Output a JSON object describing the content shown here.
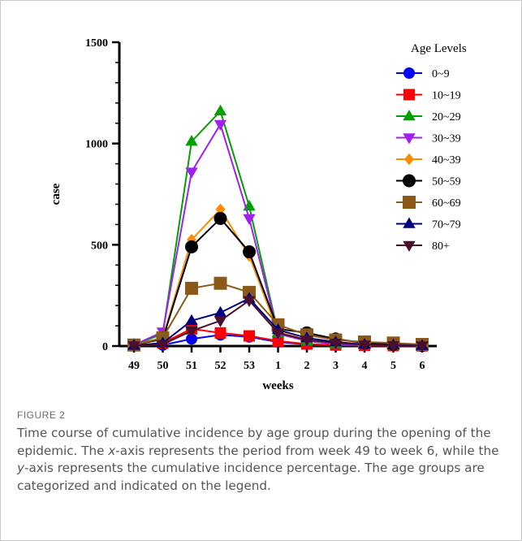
{
  "chart_data": {
    "type": "line",
    "title": "",
    "xlabel": "weeks",
    "ylabel": "case",
    "categories": [
      "49",
      "50",
      "51",
      "52",
      "53",
      "1",
      "2",
      "3",
      "4",
      "5",
      "6"
    ],
    "ylim": [
      0,
      1500
    ],
    "yticks": [
      "0",
      "500",
      "1000",
      "1500"
    ],
    "legend_title": "Age Levels",
    "legend_position": "top-right",
    "series": [
      {
        "name": "0~9",
        "color": "#0000ff",
        "marker": "circle",
        "values": [
          3,
          5,
          35,
          55,
          45,
          20,
          8,
          4,
          3,
          2,
          1
        ]
      },
      {
        "name": "10~19",
        "color": "#ff0000",
        "marker": "square",
        "values": [
          3,
          15,
          85,
          65,
          50,
          25,
          10,
          5,
          3,
          2,
          1
        ]
      },
      {
        "name": "20~29",
        "color": "#00a000",
        "marker": "triangle-up",
        "values": [
          5,
          60,
          1010,
          1160,
          690,
          65,
          25,
          10,
          5,
          3,
          2
        ]
      },
      {
        "name": "30~39",
        "color": "#a020f0",
        "marker": "triangle-down",
        "values": [
          5,
          70,
          860,
          1095,
          630,
          60,
          25,
          10,
          5,
          3,
          2
        ]
      },
      {
        "name": "40~39",
        "color": "#ff8c00",
        "marker": "diamond",
        "values": [
          5,
          40,
          525,
          675,
          445,
          70,
          30,
          15,
          8,
          5,
          3
        ]
      },
      {
        "name": "50~59",
        "color": "#000000",
        "marker": "circle",
        "values": [
          5,
          35,
          490,
          630,
          465,
          85,
          65,
          35,
          15,
          8,
          3
        ]
      },
      {
        "name": "60~69",
        "color": "#8b5a1a",
        "marker": "square",
        "values": [
          5,
          40,
          285,
          310,
          265,
          105,
          55,
          30,
          20,
          15,
          8
        ]
      },
      {
        "name": "70~79",
        "color": "#000080",
        "marker": "triangle-up",
        "values": [
          3,
          15,
          125,
          165,
          235,
          80,
          40,
          20,
          8,
          5,
          2
        ]
      },
      {
        "name": "80+",
        "color": "#4b0f2e",
        "marker": "triangle-down",
        "values": [
          2,
          8,
          75,
          125,
          225,
          65,
          30,
          15,
          6,
          3,
          2
        ]
      }
    ]
  },
  "caption": {
    "label": "FIGURE 2",
    "text_html": "Time course of cumulative incidence by age group during the opening of the epidemic. The <i>x</i>-axis represents the period from week 49 to week 6, while the <i>y</i>-axis represents the cumulative incidence percentage. The age groups are categorized and indicated on the legend."
  }
}
